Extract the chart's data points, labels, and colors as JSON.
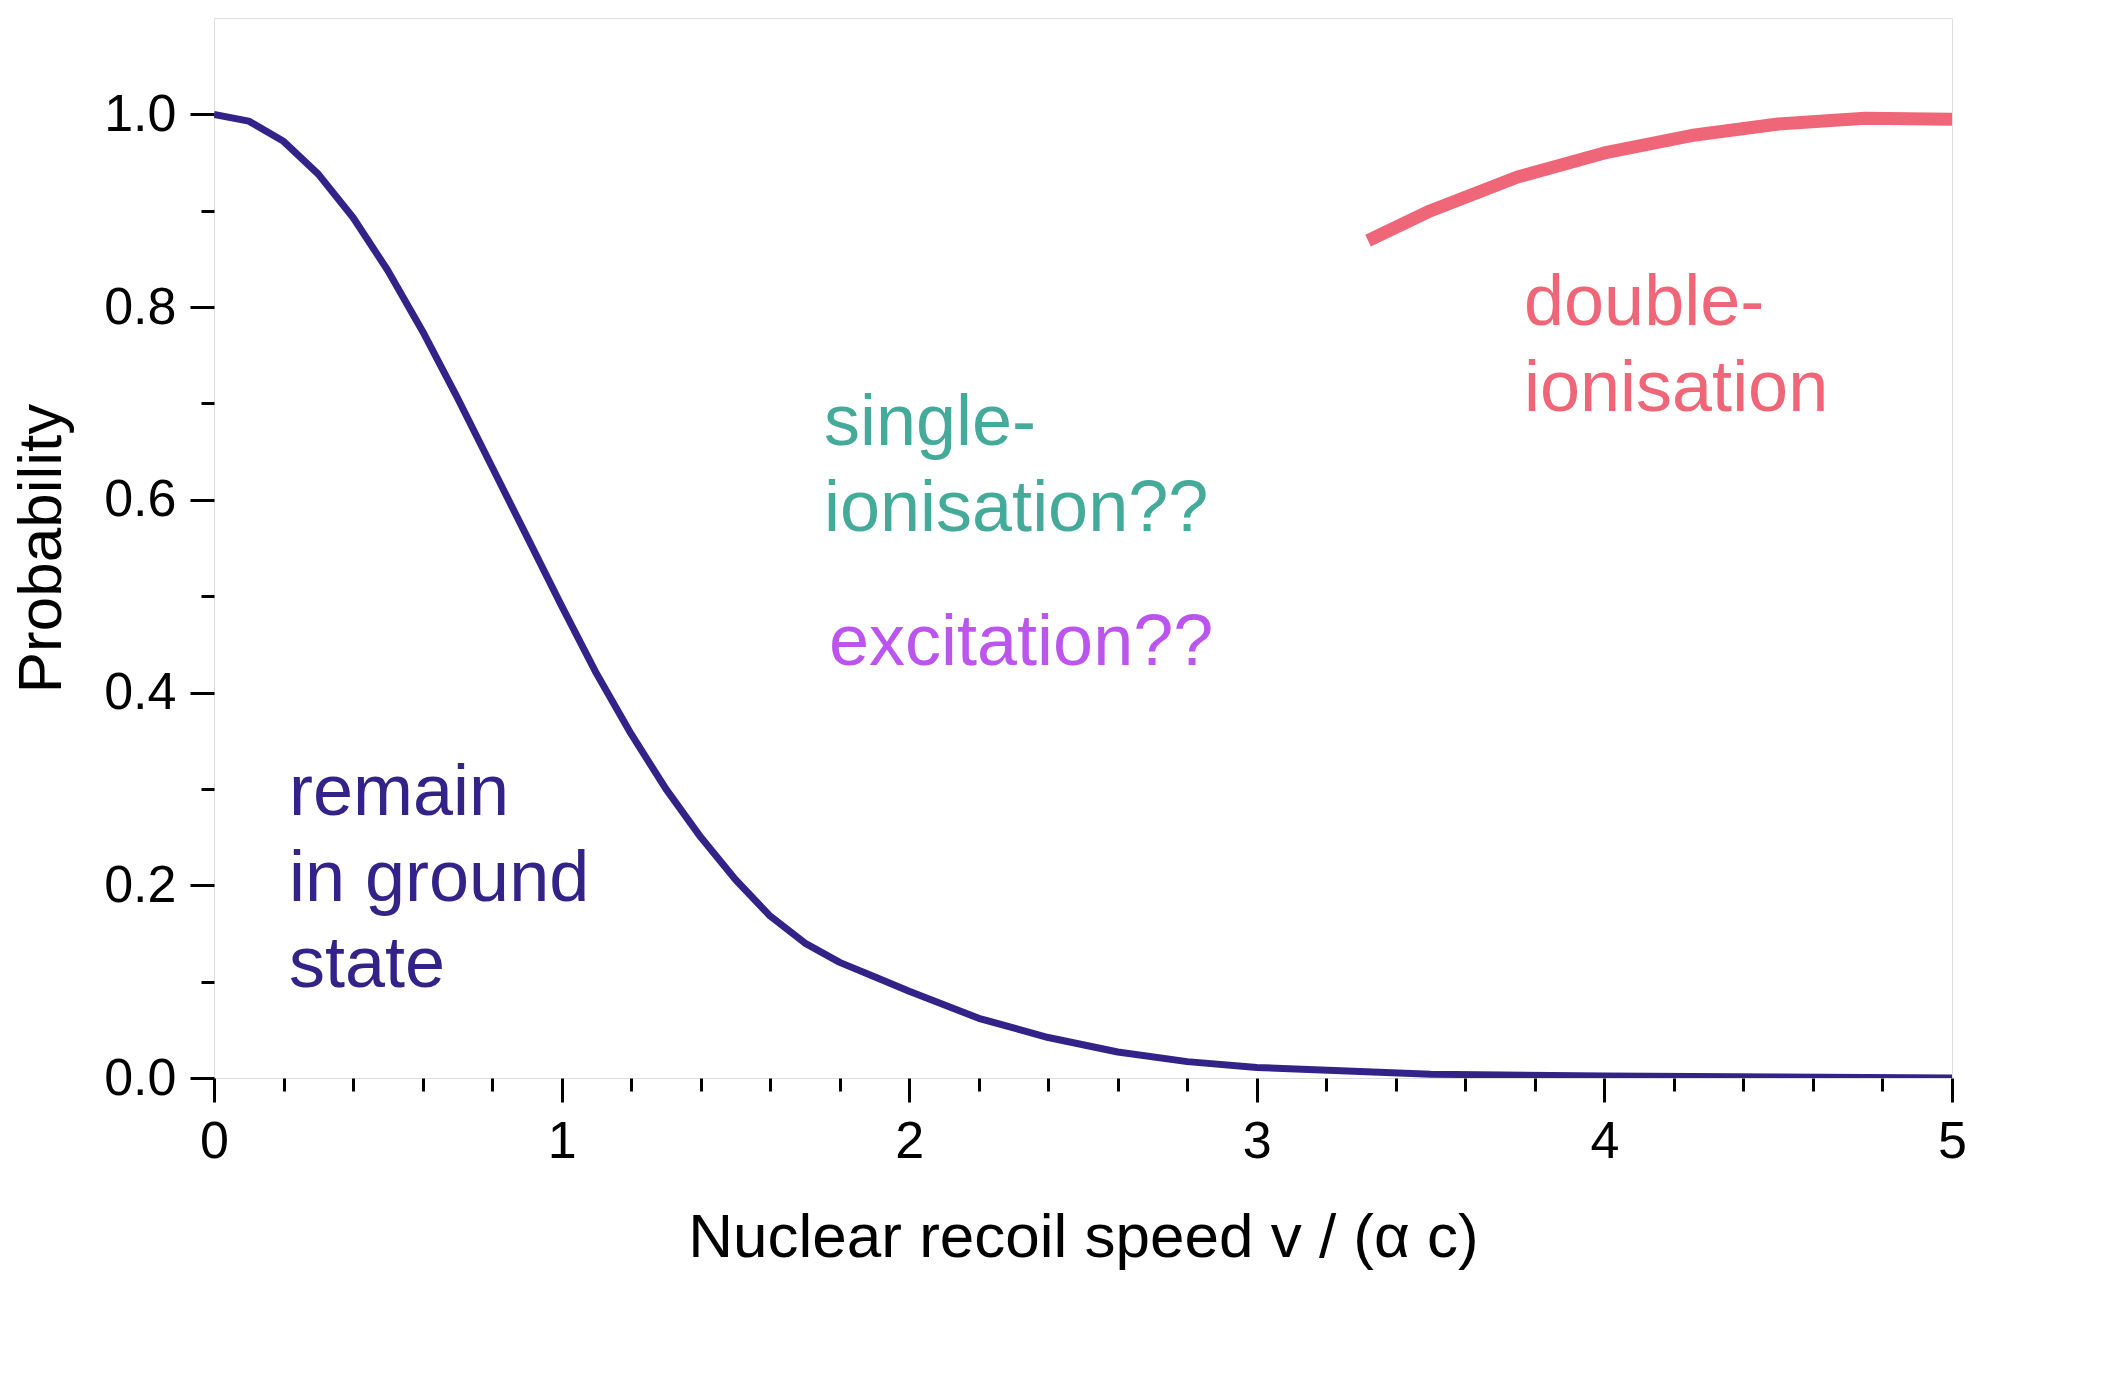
{
  "chart_data": {
    "type": "line",
    "xlabel": "Nuclear recoil speed v / (α c)",
    "ylabel": "Probability",
    "xlim": [
      0,
      5
    ],
    "ylim": [
      0,
      1.1
    ],
    "xticks": [
      0,
      {
        "value": 0.2,
        "label": null
      },
      {
        "value": 0.4,
        "label": null
      },
      {
        "value": 0.6,
        "label": null
      },
      {
        "value": 0.8,
        "label": null
      },
      1,
      {
        "value": 1.2,
        "label": null
      },
      {
        "value": 1.4,
        "label": null
      },
      {
        "value": 1.6,
        "label": null
      },
      {
        "value": 1.8,
        "label": null
      },
      2,
      {
        "value": 2.2,
        "label": null
      },
      {
        "value": 2.4,
        "label": null
      },
      {
        "value": 2.6,
        "label": null
      },
      {
        "value": 2.8,
        "label": null
      },
      3,
      {
        "value": 3.2,
        "label": null
      },
      {
        "value": 3.4,
        "label": null
      },
      {
        "value": 3.6,
        "label": null
      },
      {
        "value": 3.8,
        "label": null
      },
      4,
      {
        "value": 4.2,
        "label": null
      },
      {
        "value": 4.4,
        "label": null
      },
      {
        "value": 4.6,
        "label": null
      },
      {
        "value": 4.8,
        "label": null
      },
      5
    ],
    "yticks": [
      {
        "value": 0,
        "label": "0.0"
      },
      {
        "value": 0.1,
        "label": null
      },
      {
        "value": 0.2,
        "label": "0.2"
      },
      {
        "value": 0.3,
        "label": null
      },
      {
        "value": 0.4,
        "label": "0.4"
      },
      {
        "value": 0.5,
        "label": null
      },
      {
        "value": 0.6,
        "label": "0.6"
      },
      {
        "value": 0.7,
        "label": null
      },
      {
        "value": 0.8,
        "label": "0.8"
      },
      {
        "value": 0.9,
        "label": null
      },
      {
        "value": 1.0,
        "label": "1.0"
      }
    ],
    "grid": false,
    "legend": false,
    "marker": "none",
    "line_style": "solid",
    "series": [
      {
        "name": "remain\nin ground\nstate",
        "color": "#332288",
        "x": [
          0,
          0.1,
          0.2,
          0.3,
          0.4,
          0.5,
          0.6,
          0.7,
          0.8,
          0.9,
          1.0,
          1.1,
          1.2,
          1.3,
          1.4,
          1.5,
          1.6,
          1.7,
          1.8,
          1.9,
          2.0,
          2.2,
          2.4,
          2.6,
          2.8,
          3.0,
          3.5,
          4.0,
          4.5,
          5.0
        ],
        "values": [
          1.0,
          0.993,
          0.972,
          0.938,
          0.893,
          0.838,
          0.775,
          0.706,
          0.634,
          0.562,
          0.49,
          0.42,
          0.357,
          0.3,
          0.25,
          0.206,
          0.168,
          0.14,
          0.12,
          0.105,
          0.09,
          0.062,
          0.042,
          0.027,
          0.017,
          0.011,
          0.004,
          0.002,
          0.001,
          0.0
        ]
      },
      {
        "name": "double-\nionisation",
        "color": "#ee6677",
        "x": [
          3.32,
          3.5,
          3.75,
          4.0,
          4.25,
          4.5,
          4.75,
          5.0
        ],
        "values": [
          0.869,
          0.9,
          0.935,
          0.96,
          0.978,
          0.99,
          0.996,
          0.995
        ]
      }
    ],
    "annotations": [
      "single-\nionisation??",
      "excitation??"
    ]
  }
}
